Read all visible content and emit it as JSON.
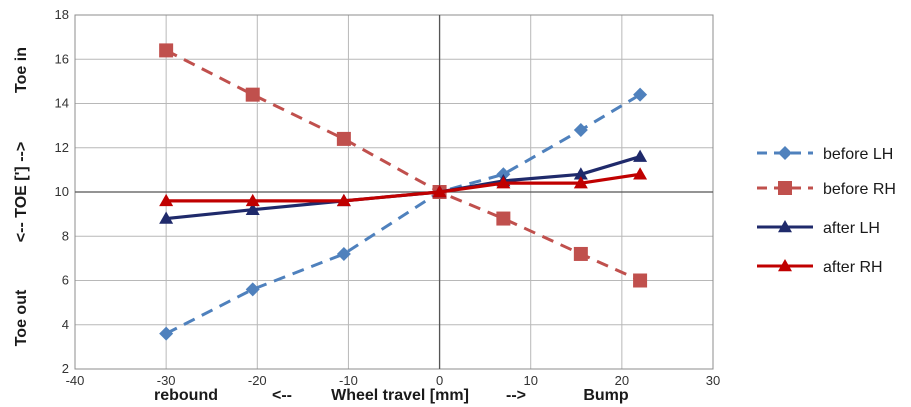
{
  "chart_data": {
    "type": "line",
    "title": "",
    "xlim": [
      -40,
      30
    ],
    "ylim": [
      2,
      18
    ],
    "xticks": [
      -40,
      -30,
      -20,
      -10,
      0,
      10,
      20,
      30
    ],
    "yticks": [
      2,
      4,
      6,
      8,
      10,
      12,
      14,
      16,
      18
    ],
    "grid": true,
    "legend_position": "right",
    "xlabel_parts": [
      "rebound",
      "<--",
      "Wheel travel [mm]",
      "-->",
      "Bump"
    ],
    "ylabel_parts": [
      "Toe out",
      "<-- TOE  [']  -->",
      "Toe in"
    ],
    "series": [
      {
        "name": "before LH",
        "color": "#4f81bd",
        "dash": true,
        "marker": "diamond",
        "x": [
          -30,
          -20.5,
          -10.5,
          0,
          7,
          15.5,
          22
        ],
        "y": [
          3.6,
          5.6,
          7.2,
          10.0,
          10.8,
          12.8,
          14.4
        ]
      },
      {
        "name": "before RH",
        "color": "#c0504d",
        "dash": true,
        "marker": "square",
        "x": [
          -30,
          -20.5,
          -10.5,
          0,
          7,
          15.5,
          22
        ],
        "y": [
          16.4,
          14.4,
          12.4,
          10.0,
          8.8,
          7.2,
          6.0
        ]
      },
      {
        "name": "after LH",
        "color": "#1f2a6b",
        "dash": false,
        "marker": "triangle",
        "x": [
          -30,
          -20.5,
          -10.5,
          0,
          7,
          15.5,
          22
        ],
        "y": [
          8.8,
          9.2,
          9.6,
          10.0,
          10.5,
          10.8,
          11.6
        ]
      },
      {
        "name": "after RH",
        "color": "#c00000",
        "dash": false,
        "marker": "triangle",
        "x": [
          -30,
          -20.5,
          -10.5,
          0,
          7,
          15.5,
          22
        ],
        "y": [
          9.6,
          9.6,
          9.6,
          10.0,
          10.4,
          10.4,
          10.8
        ]
      }
    ]
  }
}
